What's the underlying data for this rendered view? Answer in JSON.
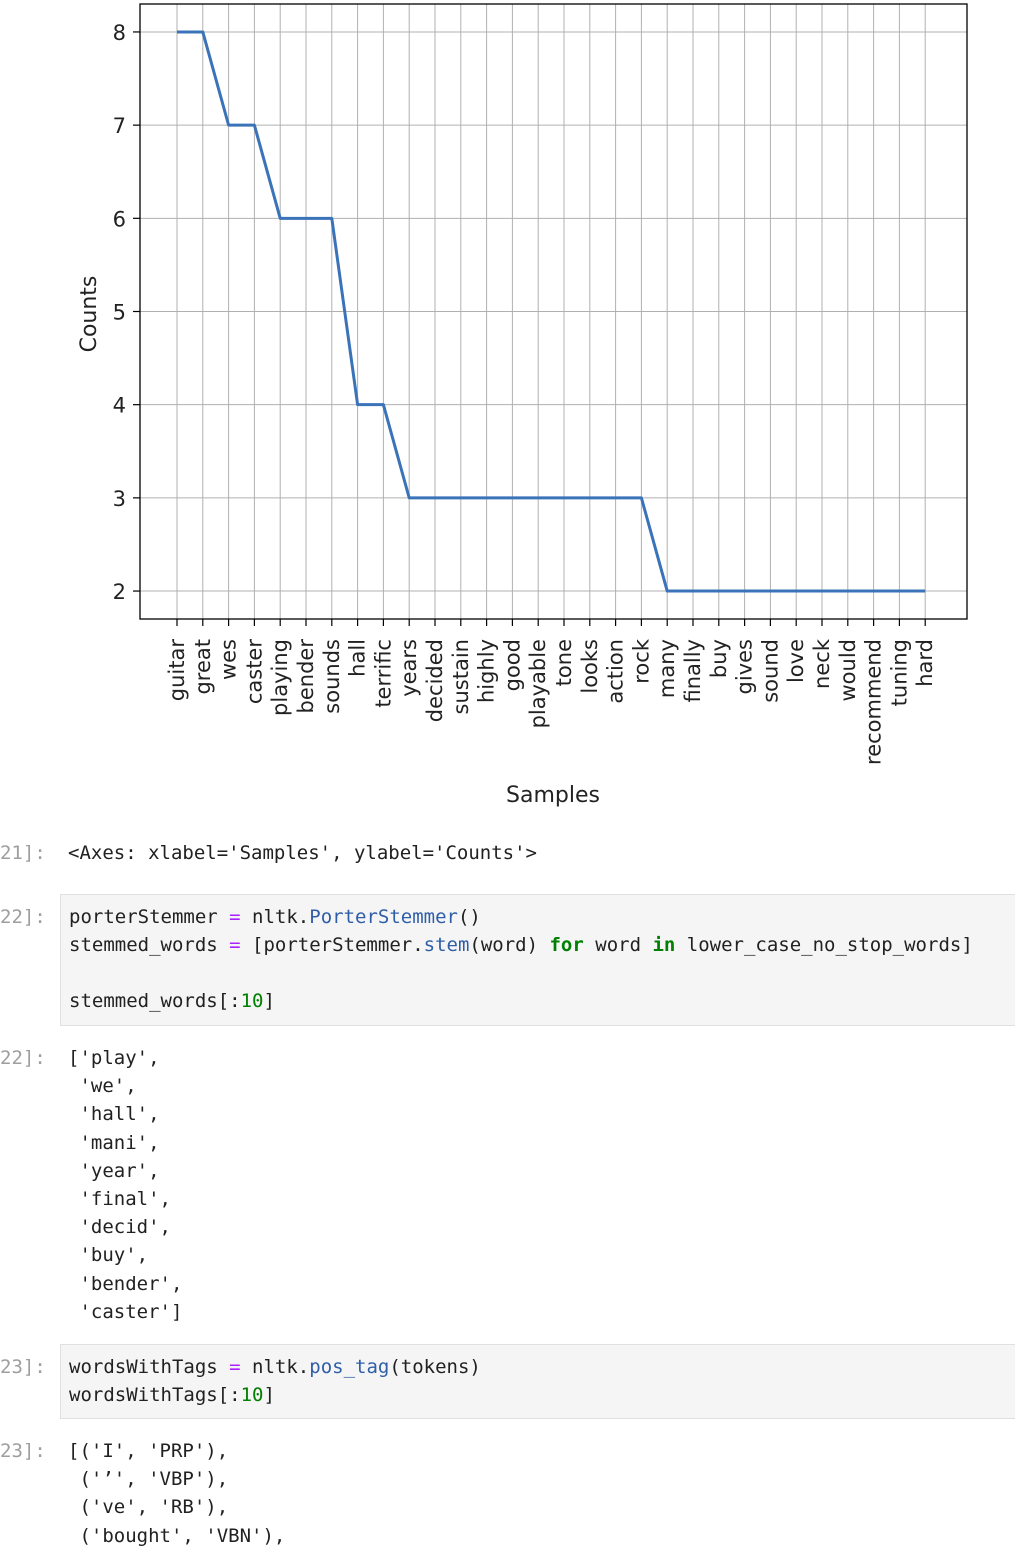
{
  "chart_data": {
    "type": "line",
    "categories": [
      "guitar",
      "great",
      "wes",
      "caster",
      "playing",
      "bender",
      "sounds",
      "hall",
      "terrific",
      "years",
      "decided",
      "sustain",
      "highly",
      "good",
      "playable",
      "tone",
      "looks",
      "action",
      "rock",
      "many",
      "finally",
      "buy",
      "gives",
      "sound",
      "love",
      "neck",
      "would",
      "recommend",
      "tuning",
      "hard"
    ],
    "values": [
      8,
      8,
      7,
      7,
      6,
      6,
      6,
      4,
      4,
      3,
      3,
      3,
      3,
      3,
      3,
      3,
      3,
      3,
      3,
      2,
      2,
      2,
      2,
      2,
      2,
      2,
      2,
      2,
      2,
      2
    ],
    "xlabel": "Samples",
    "ylabel": "Counts",
    "yticks": [
      2,
      3,
      4,
      5,
      6,
      7,
      8
    ],
    "ylim": [
      1.7,
      8.3
    ],
    "grid": true,
    "line_color": "#3b73b9"
  },
  "cells": {
    "c21_out_prompt": "21]:",
    "c21_out_text": "<Axes: xlabel='Samples', ylabel='Counts'>",
    "c22_in_prompt": "22]:",
    "c22_code": {
      "l1_var": "porterStemmer",
      "l1_eq": " = ",
      "l1_mod": "nltk.",
      "l1_fn": "PorterStemmer",
      "l1_end": "()",
      "l2_var": "stemmed_words",
      "l2_eq": " = ",
      "l2_a": "[porterStemmer.",
      "l2_fn": "stem",
      "l2_b": "(word) ",
      "l2_for": "for",
      "l2_c": " word ",
      "l2_in": "in",
      "l2_d": " lower_case_no_stop_words]",
      "l4_a": "stemmed_words[:",
      "l4_num": "10",
      "l4_b": "]"
    },
    "c22_out_prompt": "22]:",
    "c22_out_lines": [
      "['play',",
      " 'we',",
      " 'hall',",
      " 'mani',",
      " 'year',",
      " 'final',",
      " 'decid',",
      " 'buy',",
      " 'bender',",
      " 'caster']"
    ],
    "c23_in_prompt": "23]:",
    "c23_code": {
      "l1_var": "wordsWithTags",
      "l1_eq": " = ",
      "l1_mod": "nltk.",
      "l1_fn": "pos_tag",
      "l1_end": "(tokens)",
      "l2_a": "wordsWithTags[:",
      "l2_num": "10",
      "l2_b": "]"
    },
    "c23_out_prompt": "23]:",
    "c23_out_lines": [
      "[('I', 'PRP'),",
      " ('’', 'VBP'),",
      " ('ve', 'RB'),",
      " ('bought', 'VBN'),"
    ]
  }
}
